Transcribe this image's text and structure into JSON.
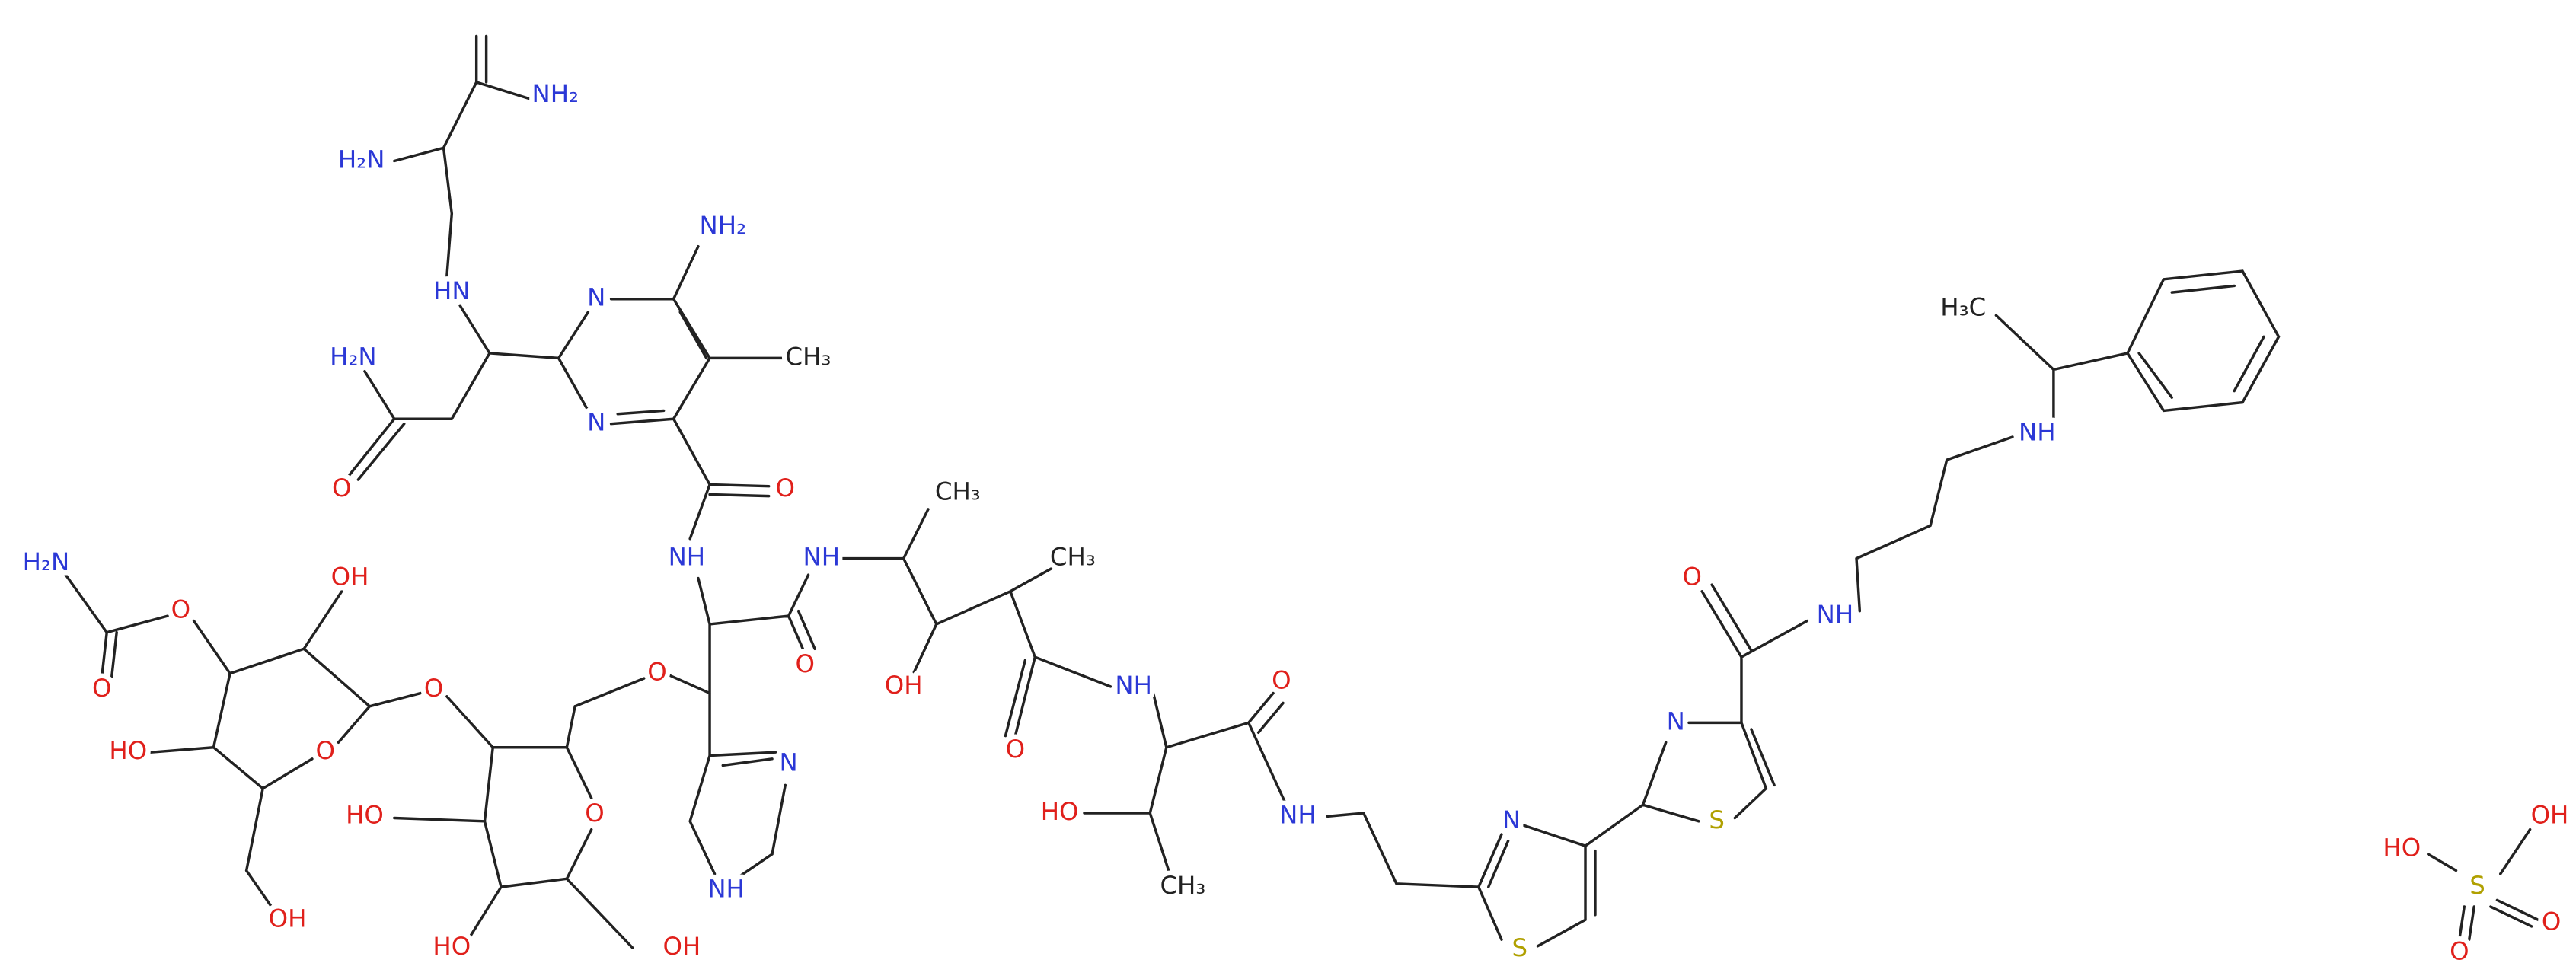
{
  "atoms": [
    "NH₂",
    "H₂N",
    "HN",
    "N",
    "NH₂",
    "CH₃",
    "H₂N",
    "N",
    "O",
    "O",
    "NH",
    "NH",
    "CH₃",
    "CH₃",
    "H₂N",
    "OH",
    "O",
    "O",
    "OH",
    "O",
    "O",
    "O",
    "NH",
    "O",
    "O",
    "HO",
    "O",
    "N",
    "O",
    "HO",
    "NH",
    "HO",
    "N",
    "N",
    "S",
    "CH₃",
    "OH",
    "NH",
    "HO",
    "OH",
    "S",
    "O",
    "NH",
    "NH",
    "H₃C",
    "HO",
    "OH",
    "S",
    "O",
    "O"
  ]
}
